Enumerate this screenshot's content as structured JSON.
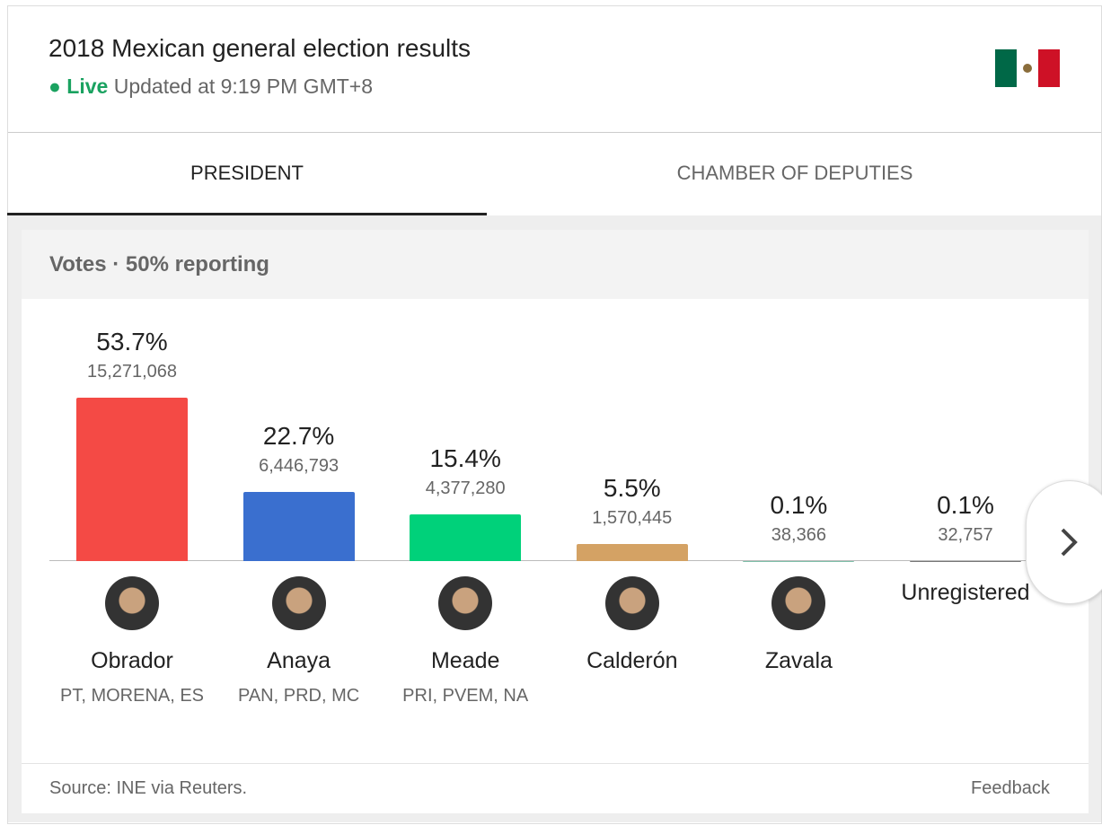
{
  "header": {
    "title": "2018 Mexican general election results",
    "live": "Live",
    "updated": "Updated at 9:19 PM GMT+8"
  },
  "tabs": [
    "PRESIDENT",
    "CHAMBER OF DEPUTIES"
  ],
  "chart_data": {
    "type": "bar",
    "title": "Votes · 50% reporting",
    "categories": [
      "Obrador",
      "Anaya",
      "Meade",
      "Calderón",
      "Zavala",
      "Unregistered"
    ],
    "parties": [
      "PT, MORENA, ES",
      "PAN, PRD, MC",
      "PRI, PVEM, NA",
      null,
      null,
      null
    ],
    "values": [
      53.7,
      22.7,
      15.4,
      5.5,
      0.1,
      0.1
    ],
    "value_labels": [
      "53.7%",
      "22.7%",
      "15.4%",
      "5.5%",
      "0.1%",
      "0.1%"
    ],
    "votes": [
      "15,271,068",
      "6,446,793",
      "4,377,280",
      "1,570,445",
      "38,366",
      "32,757"
    ],
    "colors": [
      "#f44a45",
      "#3a6fcf",
      "#00d17a",
      "#d4a264",
      "#7fbfa9",
      "#777777"
    ]
  },
  "footer": {
    "source": "Source: INE via Reuters.",
    "feedback": "Feedback"
  }
}
